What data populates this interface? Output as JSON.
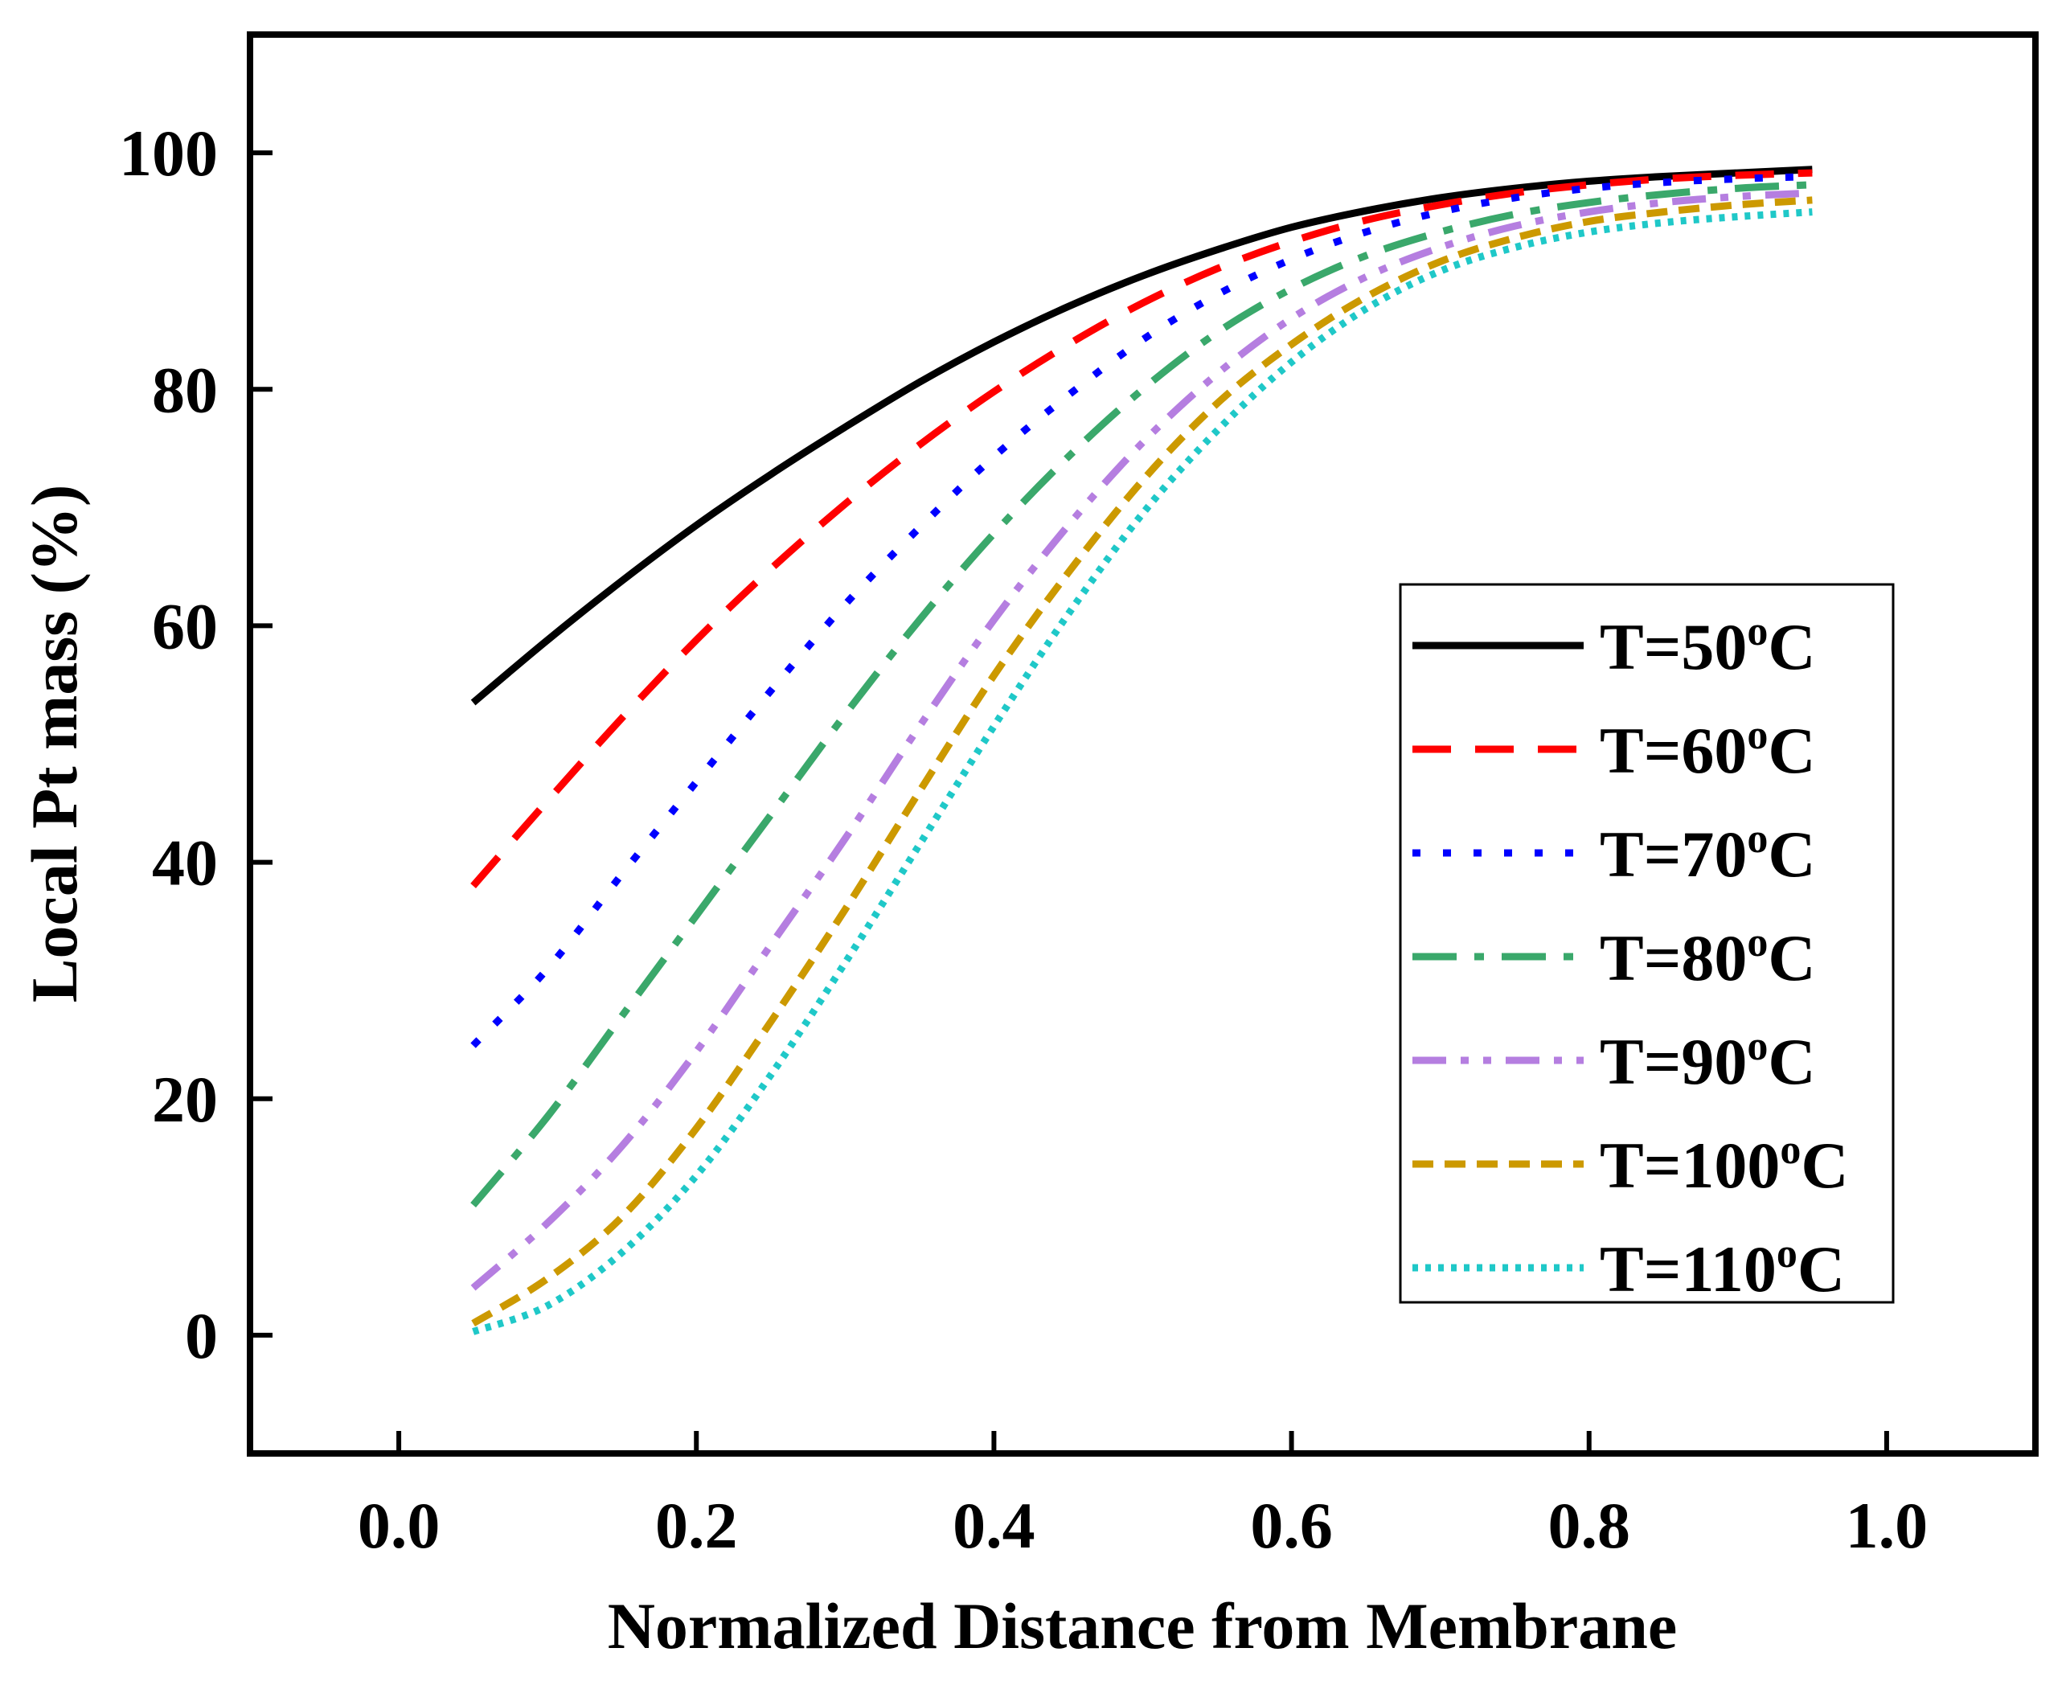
{
  "chart_data": {
    "type": "line",
    "title": "",
    "xlabel": "Normalized Distance from Membrane",
    "ylabel": "Local Pt mass (%)",
    "xlim": [
      -0.1,
      1.1
    ],
    "ylim": [
      -10,
      110
    ],
    "x_ticks": [
      0.0,
      0.2,
      0.4,
      0.6,
      0.8,
      1.0
    ],
    "x_tick_labels": [
      "0.0",
      "0.2",
      "0.4",
      "0.6",
      "0.8",
      "1.0"
    ],
    "y_ticks": [
      0,
      20,
      40,
      60,
      80,
      100
    ],
    "y_tick_labels": [
      "0",
      "20",
      "40",
      "60",
      "80",
      "100"
    ],
    "grid": false,
    "legend_position": "right",
    "x": [
      0.05,
      0.1,
      0.15,
      0.2,
      0.25,
      0.3,
      0.35,
      0.4,
      0.45,
      0.5,
      0.55,
      0.6,
      0.65,
      0.7,
      0.75,
      0.8,
      0.85,
      0.9,
      0.95
    ],
    "series": [
      {
        "name": "T=50",
        "sup": "o",
        "unit": "C",
        "color": "#000000",
        "dash": "solid",
        "values": [
          53.5,
          58.8,
          63.8,
          68.5,
          72.8,
          76.8,
          80.6,
          84.0,
          87.0,
          89.6,
          91.8,
          93.7,
          95.1,
          96.2,
          97.0,
          97.6,
          98.0,
          98.3,
          98.6
        ]
      },
      {
        "name": "T=60",
        "sup": "o",
        "unit": "C",
        "color": "#ff0000",
        "dash": "dash",
        "values": [
          38.0,
          45.2,
          52.2,
          58.8,
          64.8,
          70.3,
          75.3,
          79.8,
          83.8,
          87.3,
          90.2,
          92.5,
          94.3,
          95.6,
          96.6,
          97.3,
          97.8,
          98.1,
          98.3
        ]
      },
      {
        "name": "T=70",
        "sup": "o",
        "unit": "C",
        "color": "#0000ff",
        "dash": "dot",
        "values": [
          24.5,
          31.0,
          39.0,
          46.8,
          54.5,
          61.8,
          68.3,
          74.3,
          79.5,
          84.2,
          88.0,
          91.0,
          93.3,
          95.0,
          96.2,
          97.0,
          97.5,
          97.8,
          98.0
        ]
      },
      {
        "name": "T=80",
        "sup": "o",
        "unit": "C",
        "color": "#3aa86b",
        "dash": "dashdot",
        "values": [
          11.0,
          18.5,
          27.0,
          35.5,
          44.0,
          52.5,
          60.5,
          67.8,
          74.3,
          80.0,
          84.8,
          88.5,
          91.3,
          93.3,
          94.8,
          95.8,
          96.5,
          97.0,
          97.3
        ]
      },
      {
        "name": "T=90",
        "sup": "o",
        "unit": "C",
        "color": "#b57ee0",
        "dash": "dashdotdot",
        "values": [
          4.0,
          9.5,
          16.0,
          24.0,
          33.0,
          42.0,
          51.5,
          60.5,
          68.5,
          75.5,
          81.3,
          86.0,
          89.5,
          92.0,
          93.8,
          95.0,
          95.8,
          96.3,
          96.6
        ]
      },
      {
        "name": "T=100",
        "sup": "o",
        "unit": "C",
        "color": "#cc9900",
        "dash": "shortdash",
        "values": [
          1.0,
          4.8,
          10.0,
          17.5,
          26.5,
          36.0,
          46.0,
          55.8,
          64.5,
          72.3,
          78.8,
          83.8,
          87.8,
          90.8,
          92.8,
          94.2,
          95.0,
          95.6,
          96.0
        ]
      },
      {
        "name": "T=110",
        "sup": "o",
        "unit": "C",
        "color": "#1fc8c8",
        "dash": "shortdot",
        "values": [
          0.3,
          2.5,
          7.0,
          13.5,
          22.0,
          31.5,
          41.5,
          51.5,
          61.0,
          69.5,
          76.5,
          82.3,
          86.8,
          90.0,
          92.0,
          93.3,
          94.1,
          94.6,
          95.0
        ]
      }
    ]
  }
}
